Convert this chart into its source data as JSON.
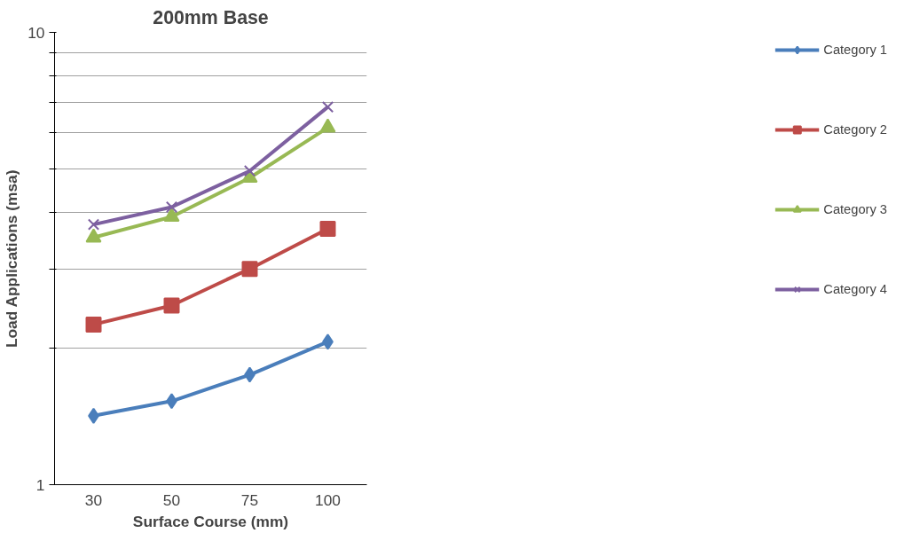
{
  "chart_data": {
    "type": "line",
    "title": "200mm Base",
    "xlabel": "Surface Course (mm)",
    "ylabel": "Load Applications (msa)",
    "categories": [
      "30",
      "50",
      "75",
      "100"
    ],
    "series": [
      {
        "name": "Category 1",
        "color": "#4a7ebb",
        "marker": "diamond",
        "values": [
          1.42,
          1.53,
          1.75,
          2.07
        ]
      },
      {
        "name": "Category 2",
        "color": "#be4b48",
        "marker": "square",
        "values": [
          2.26,
          2.49,
          3.0,
          3.68
        ]
      },
      {
        "name": "Category 3",
        "color": "#98b954",
        "marker": "triangle",
        "values": [
          3.52,
          3.91,
          4.77,
          6.16
        ]
      },
      {
        "name": "Category 4",
        "color": "#7d60a0",
        "marker": "cross",
        "values": [
          3.76,
          4.11,
          4.94,
          6.84
        ]
      }
    ],
    "log": "y",
    "ylim": [
      1,
      10
    ],
    "yticks": [
      1,
      {
        "value": 2,
        "label": null
      },
      {
        "value": 3,
        "label": null
      },
      {
        "value": 4,
        "label": null
      },
      {
        "value": 5,
        "label": null
      },
      {
        "value": 6,
        "label": null
      },
      {
        "value": 7,
        "label": null
      },
      {
        "value": 8,
        "label": null
      },
      {
        "value": 9,
        "label": null
      },
      10
    ],
    "grid": "y",
    "legend": "right",
    "line_style": "solid"
  }
}
